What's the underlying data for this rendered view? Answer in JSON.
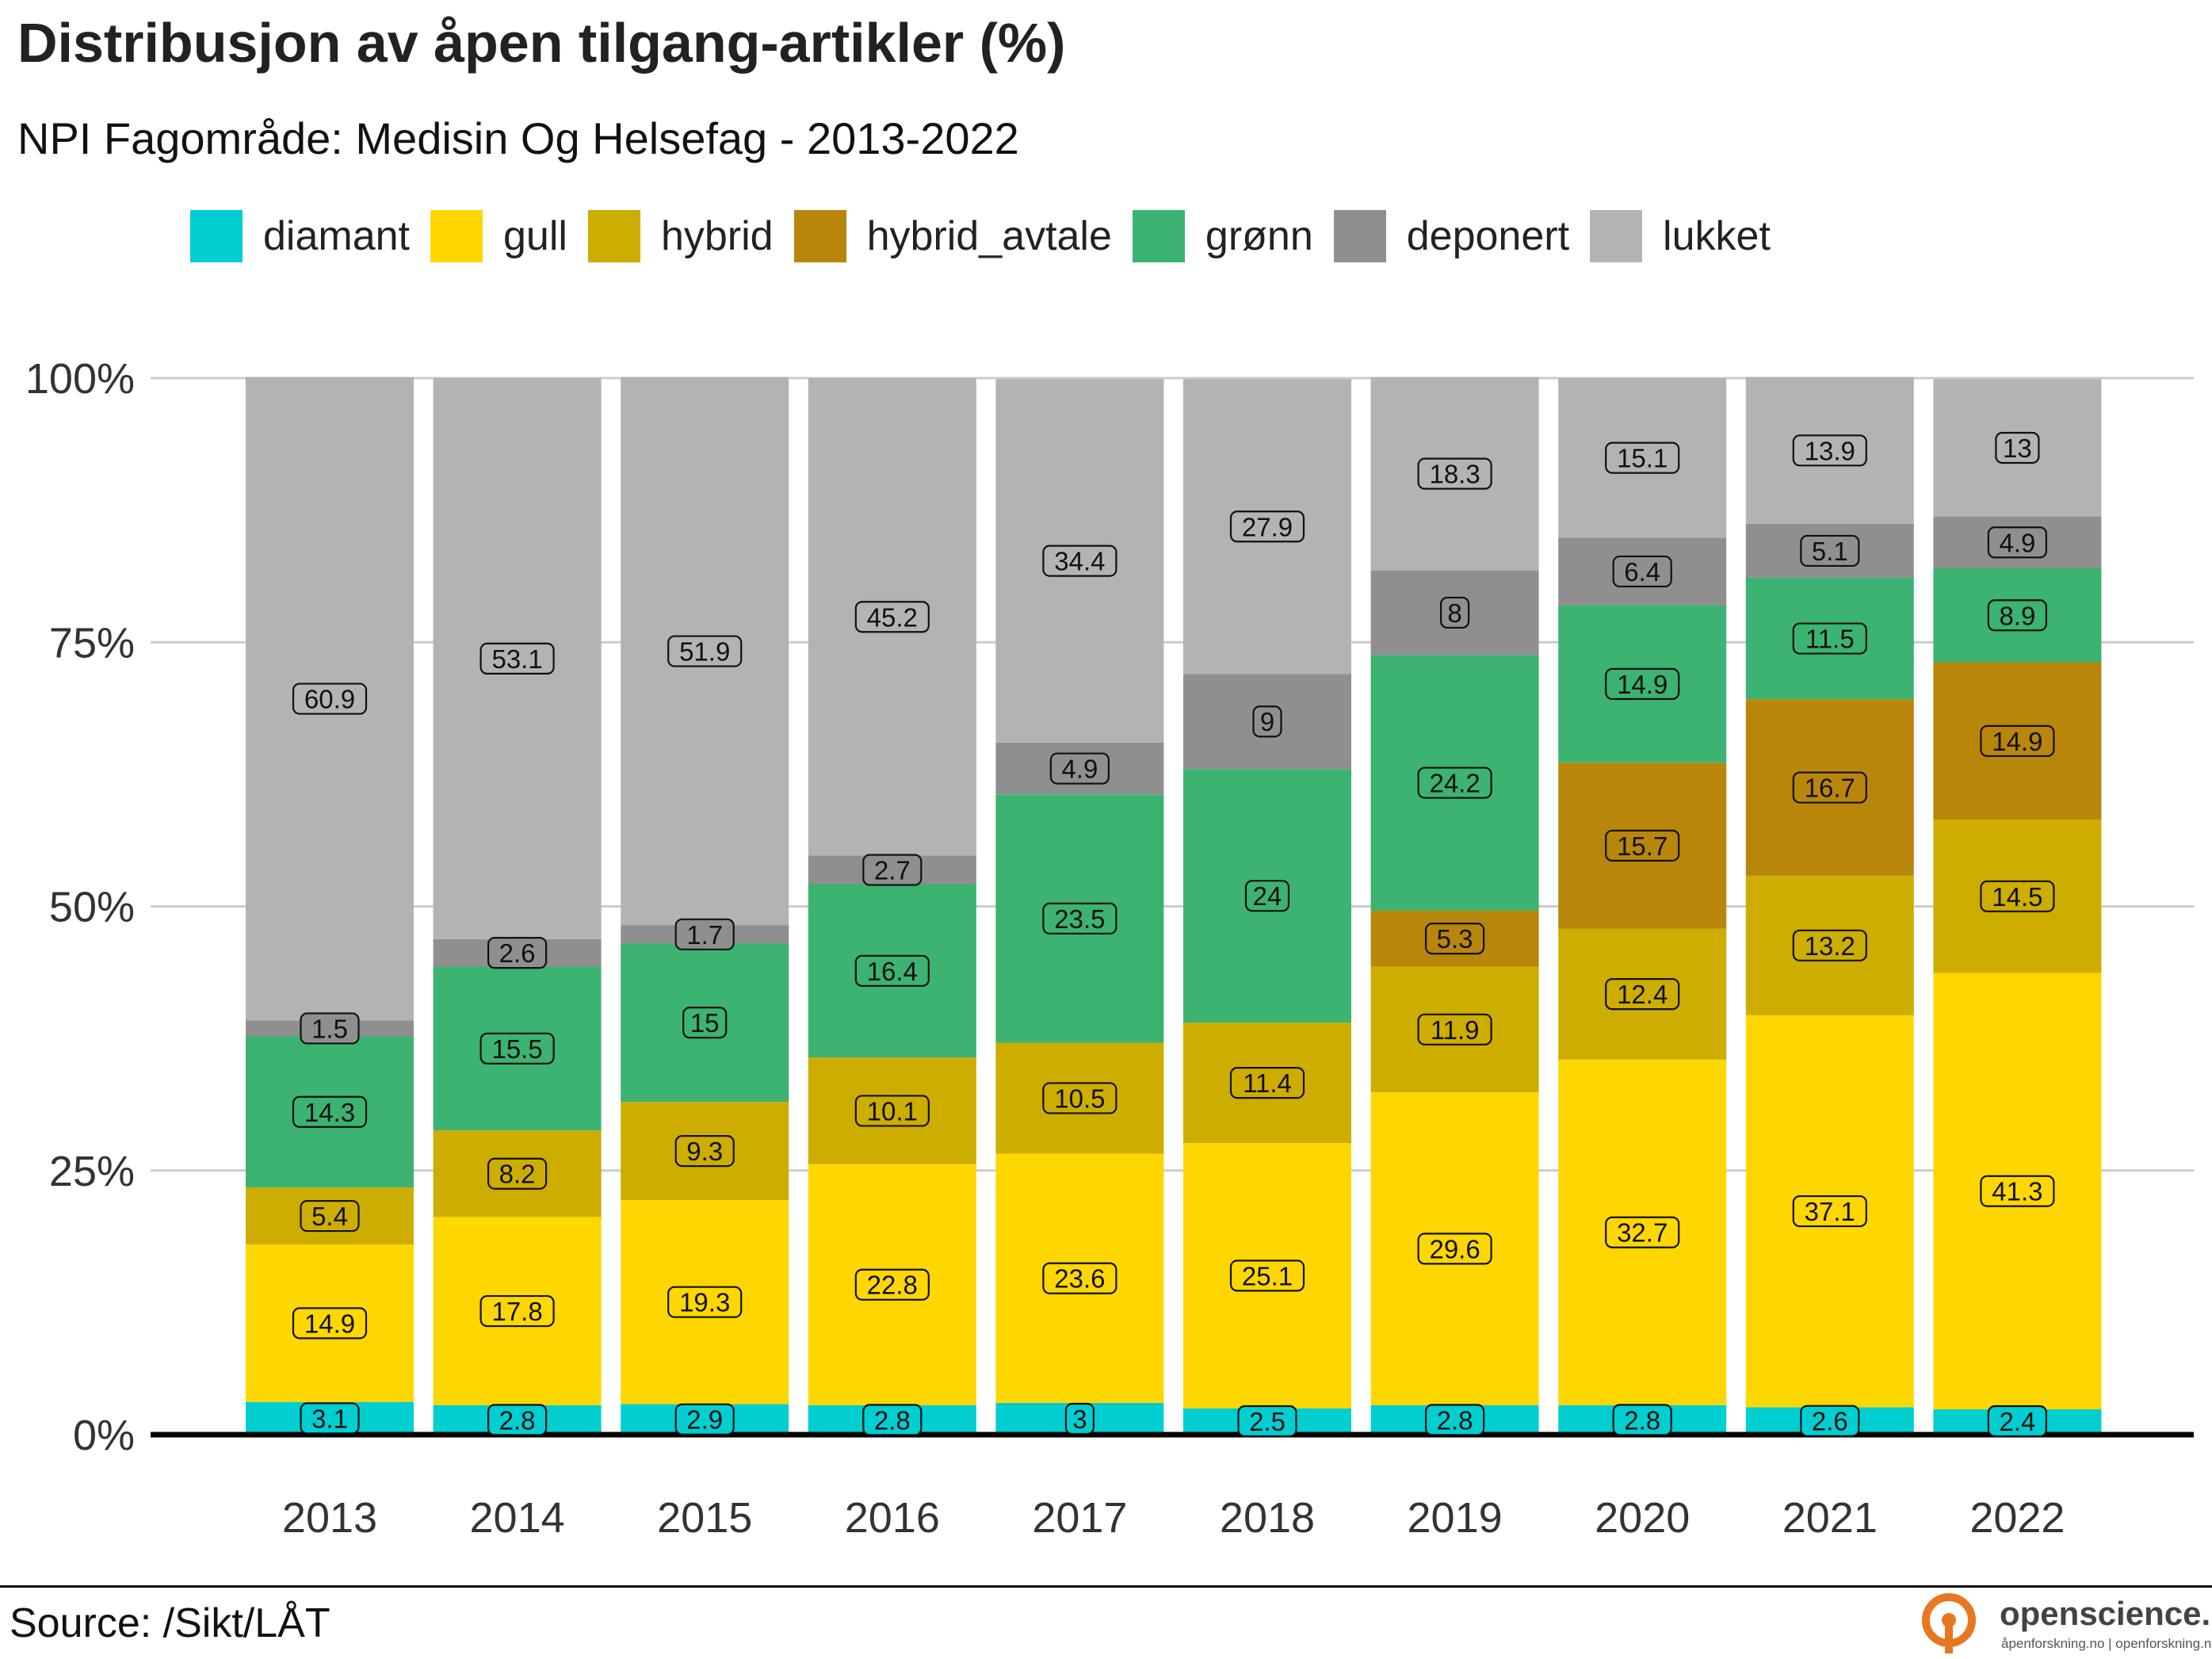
{
  "title": "Distribusjon av åpen tilgang-artikler (%)",
  "subtitle": "NPI Fagområde: Medisin Og Helsefag - 2013-2022",
  "source": "Source: /Sikt/LÅT",
  "logo": {
    "name": "openscience.no",
    "tagline": "åpenforskning.no | openforskning.no",
    "color": "#e87722"
  },
  "chart_data": {
    "type": "bar",
    "stacked": true,
    "categories": [
      "2013",
      "2014",
      "2015",
      "2016",
      "2017",
      "2018",
      "2019",
      "2020",
      "2021",
      "2022"
    ],
    "ylim": [
      0,
      100
    ],
    "yticks": [
      0,
      25,
      50,
      75,
      100
    ],
    "ytick_labels": [
      "0%",
      "25%",
      "50%",
      "75%",
      "100%"
    ],
    "grid": "horizontal",
    "legend_position": "top",
    "series": [
      {
        "name": "diamant",
        "color": "#00ced1",
        "values": [
          3.1,
          2.8,
          2.9,
          2.8,
          3,
          2.5,
          2.8,
          2.8,
          2.6,
          2.4
        ]
      },
      {
        "name": "gull",
        "color": "#ffd700",
        "values": [
          14.9,
          17.8,
          19.3,
          22.8,
          23.6,
          25.1,
          29.6,
          32.7,
          37.1,
          41.3
        ]
      },
      {
        "name": "hybrid",
        "color": "#cdad00",
        "values": [
          5.4,
          8.2,
          9.3,
          10.1,
          10.5,
          11.4,
          11.9,
          12.4,
          13.2,
          14.5
        ]
      },
      {
        "name": "hybrid_avtale",
        "color": "#b8860b",
        "values": [
          null,
          null,
          null,
          null,
          null,
          null,
          5.3,
          15.7,
          16.7,
          14.9
        ]
      },
      {
        "name": "grønn",
        "color": "#3cb371",
        "values": [
          14.3,
          15.5,
          15,
          16.4,
          23.5,
          24,
          24.2,
          14.9,
          11.5,
          8.9
        ]
      },
      {
        "name": "deponert",
        "color": "#8f8f8f",
        "values": [
          1.5,
          2.6,
          1.7,
          2.7,
          4.9,
          9,
          8,
          6.4,
          5.1,
          4.9
        ]
      },
      {
        "name": "lukket",
        "color": "#b3b3b3",
        "values": [
          60.9,
          53.1,
          51.9,
          45.2,
          34.4,
          27.9,
          18.3,
          15.1,
          13.9,
          13
        ]
      }
    ]
  }
}
